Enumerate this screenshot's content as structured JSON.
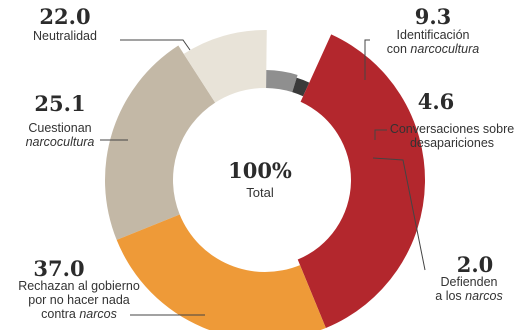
{
  "chart_data": {
    "type": "pie",
    "variant": "donut",
    "center": {
      "value": "100%",
      "label": "Total"
    },
    "slices": [
      {
        "key": "neutralidad",
        "value": 22.0,
        "value_text": "22.0",
        "label_lines": [
          [
            "Neutralidad"
          ]
        ],
        "color": "#c3b8a6"
      },
      {
        "key": "identificacion",
        "value": 9.3,
        "value_text": "9.3",
        "label_lines": [
          [
            "Identificación"
          ],
          [
            "con ",
            "narcocultura"
          ]
        ],
        "color": "#e8e3d8"
      },
      {
        "key": "conversaciones",
        "value": 4.6,
        "value_text": "4.6",
        "label_lines": [
          [
            "Conversaciones sobre"
          ],
          [
            "desapariciones"
          ]
        ],
        "color": "#8f8f8f"
      },
      {
        "key": "defienden",
        "value": 2.0,
        "value_text": "2.0",
        "label_lines": [
          [
            "Defienden"
          ],
          [
            "a los ",
            "narcos"
          ]
        ],
        "color": "#3a3a3a"
      },
      {
        "key": "rechazan",
        "value": 37.0,
        "value_text": "37.0",
        "label_lines": [
          [
            "Rechazan al gobierno"
          ],
          [
            "por no hacer nada"
          ],
          [
            "contra ",
            "narcos"
          ]
        ],
        "color": "#b3272d"
      },
      {
        "key": "cuestionan",
        "value": 25.1,
        "value_text": "25.1",
        "label_lines": [
          [
            "Cuestionan"
          ],
          [
            "",
            "narcocultura"
          ]
        ],
        "color": "#ee9a38"
      }
    ]
  }
}
